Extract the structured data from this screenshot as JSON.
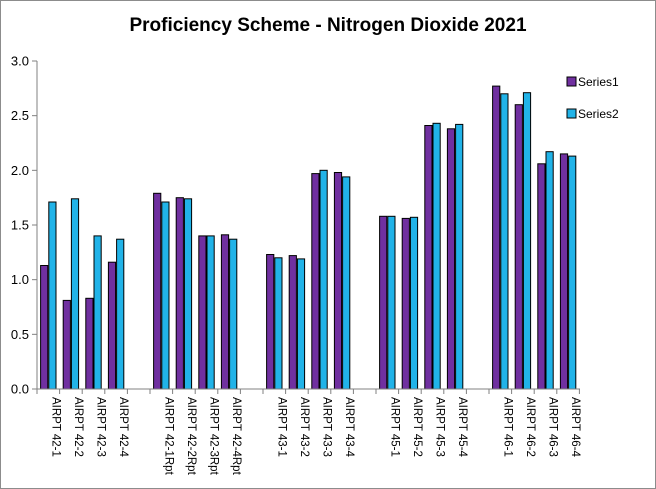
{
  "chart_data": {
    "type": "bar",
    "title": "Proficiency Scheme - Nitrogen Dioxide 2021",
    "xlabel": "",
    "ylabel": "",
    "ylim": [
      0,
      3.0
    ],
    "y_ticks": [
      "0.0",
      "0.5",
      "1.0",
      "1.5",
      "2.0",
      "2.5",
      "3.0"
    ],
    "grid": false,
    "legend_position": "right",
    "colors": {
      "Series1": "#7030a0",
      "Series2": "#21b3e8",
      "bar_outline": "#000000",
      "axis": "#808080"
    },
    "groups": [
      [
        "AIRPT 42-1",
        "AIRPT 42-2",
        "AIRPT 42-3",
        "AIRPT 42-4"
      ],
      [
        "AIRPT 42-1Rpt",
        "AIRPT 42-2Rpt",
        "AIRPT 42-3Rpt",
        "AIRPT 42-4Rpt"
      ],
      [
        "AIRPT 43-1",
        "AIRPT 43-2",
        "AIRPT 43-3",
        "AIRPT 43-4"
      ],
      [
        "AIRPT 45-1",
        "AIRPT 45-2",
        "AIRPT 45-3",
        "AIRPT 45-4"
      ],
      [
        "AIRPT 46-1",
        "AIRPT 46-2",
        "AIRPT 46-3",
        "AIRPT 46-4"
      ]
    ],
    "series": [
      {
        "name": "Series1",
        "values": [
          1.13,
          0.81,
          0.83,
          1.16,
          1.79,
          1.75,
          1.4,
          1.41,
          1.23,
          1.22,
          1.97,
          1.98,
          1.58,
          1.56,
          2.41,
          2.38,
          2.77,
          2.6,
          2.06,
          2.15
        ]
      },
      {
        "name": "Series2",
        "values": [
          1.71,
          1.74,
          1.4,
          1.37,
          1.71,
          1.74,
          1.4,
          1.37,
          1.2,
          1.19,
          2.0,
          1.94,
          1.58,
          1.57,
          2.43,
          2.42,
          2.7,
          2.71,
          2.17,
          2.13
        ]
      }
    ]
  }
}
